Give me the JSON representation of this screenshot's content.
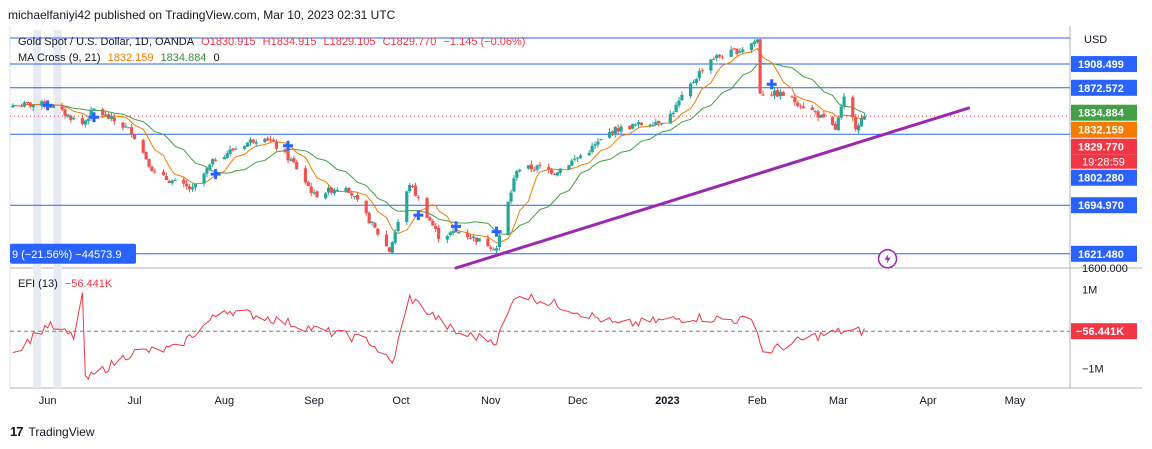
{
  "header": {
    "published_by": "michaelfaniyi42 published on TradingView.com, Mar 10, 2023 02:31 UTC"
  },
  "legend": {
    "symbol": "Gold Spot / U.S. Dollar, 1D, OANDA",
    "open": "O1830.915",
    "high": "H1834.915",
    "low": "L1829.105",
    "close": "C1829.770",
    "change": "−1.145 (−0.06%)",
    "ma_label": "MA Cross (9, 21)",
    "ma_fast": "1832.159",
    "ma_slow": "1834.884",
    "ma_extra": "0",
    "efi_label": "EFI (13)",
    "efi_value": "−56.441K"
  },
  "footer": {
    "brand": "TradingView"
  },
  "colors": {
    "up": "#26a69a",
    "down": "#ef5350",
    "ma_fast": "#f57c00",
    "ma_slow": "#43a047",
    "hline": "#2962ff",
    "trendline": "#9c27b0",
    "efi": "#f23645",
    "cross_marker": "#2962ff"
  },
  "chart_data": {
    "type": "candlestick",
    "symbol": "XAUUSD",
    "timeframe": "1D",
    "currency": "USD",
    "ylim": [
      1600,
      1960
    ],
    "y_ticks": [
      "1600.000"
    ],
    "x_tick_labels": [
      "Jun",
      "Jul",
      "Aug",
      "Sep",
      "Oct",
      "Nov",
      "Dec",
      "2023",
      "Feb",
      "Mar",
      "Apr",
      "May"
    ],
    "x_tick_dates": [
      "2022-06-01",
      "2022-07-01",
      "2022-08-01",
      "2022-09-01",
      "2022-10-01",
      "2022-11-01",
      "2022-12-01",
      "2023-01-01",
      "2023-02-01",
      "2023-03-01",
      "2023-04-01",
      "2023-05-01"
    ],
    "date_range": [
      "2022-05-20",
      "2023-03-10"
    ],
    "close_path": [
      [
        "2022-05-20",
        1846
      ],
      [
        "2022-06-01",
        1848
      ],
      [
        "2022-06-13",
        1818
      ],
      [
        "2022-06-17",
        1840
      ],
      [
        "2022-06-30",
        1807
      ],
      [
        "2022-07-08",
        1742
      ],
      [
        "2022-07-21",
        1718
      ],
      [
        "2022-07-29",
        1766
      ],
      [
        "2022-08-10",
        1792
      ],
      [
        "2022-08-15",
        1800
      ],
      [
        "2022-08-25",
        1758
      ],
      [
        "2022-09-01",
        1710
      ],
      [
        "2022-09-12",
        1725
      ],
      [
        "2022-09-27",
        1626
      ],
      [
        "2022-10-04",
        1728
      ],
      [
        "2022-10-14",
        1648
      ],
      [
        "2022-10-21",
        1655
      ],
      [
        "2022-11-03",
        1630
      ],
      [
        "2022-11-10",
        1750
      ],
      [
        "2022-11-18",
        1752
      ],
      [
        "2022-11-23",
        1745
      ],
      [
        "2022-12-05",
        1778
      ],
      [
        "2022-12-13",
        1808
      ],
      [
        "2022-12-20",
        1815
      ],
      [
        "2023-01-01",
        1825
      ],
      [
        "2023-01-15",
        1915
      ],
      [
        "2023-01-26",
        1930
      ],
      [
        "2023-02-01",
        1945
      ],
      [
        "2023-02-02",
        1866
      ],
      [
        "2023-02-10",
        1862
      ],
      [
        "2023-02-21",
        1835
      ],
      [
        "2023-02-28",
        1810
      ],
      [
        "2023-03-03",
        1855
      ],
      [
        "2023-03-07",
        1815
      ],
      [
        "2023-03-10",
        1830
      ]
    ],
    "ma_fast_value": 1832.159,
    "ma_slow_value": 1834.884,
    "last_close": 1829.77,
    "countdown": "19:28:59",
    "horizontal_levels": [
      1908.499,
      1872.572,
      1802.28,
      1694.97,
      1621.48
    ],
    "price_labels": [
      {
        "text": "USD",
        "value": null
      },
      {
        "text": "1908.499",
        "value": 1908.499,
        "color": "#2962ff"
      },
      {
        "text": "1872.572",
        "value": 1872.572,
        "color": "#2962ff"
      },
      {
        "text": "1834.884",
        "value": 1834.884,
        "color": "#43a047"
      },
      {
        "text": "1832.159",
        "value": 1832.159,
        "color": "#f57c00"
      },
      {
        "text": "1829.770",
        "value": 1829.77,
        "color": "#f23645"
      },
      {
        "text": "1802.280",
        "value": 1802.28,
        "color": "#2962ff"
      },
      {
        "text": "1694.970",
        "value": 1694.97,
        "color": "#2962ff"
      },
      {
        "text": "1621.480",
        "value": 1621.48,
        "color": "#2962ff"
      }
    ],
    "trendline": {
      "from": [
        "2022-10-20",
        1600
      ],
      "to": [
        "2023-04-15",
        1842
      ]
    },
    "measure_label": "9 (−21.56%) −44573.9",
    "cross_markers": [
      [
        "2022-06-01",
        1846
      ],
      [
        "2022-06-17",
        1828
      ],
      [
        "2022-07-29",
        1742
      ],
      [
        "2022-08-23",
        1785
      ],
      [
        "2022-10-07",
        1680
      ],
      [
        "2022-10-20",
        1663
      ],
      [
        "2022-11-03",
        1655
      ],
      [
        "2023-02-06",
        1878
      ]
    ],
    "efi": {
      "name": "EFI (13)",
      "ylim": [
        -1.5,
        1.5
      ],
      "y_tick_labels": [
        "1M",
        "−1M"
      ],
      "y_tick_values": [
        1,
        -1
      ],
      "last_value_label": "−56.441K",
      "path": [
        [
          "2022-05-20",
          -0.6
        ],
        [
          "2022-06-01",
          0.1
        ],
        [
          "2022-06-10",
          -0.2
        ],
        [
          "2022-06-13",
          0.9
        ],
        [
          "2022-06-14",
          -1.3
        ],
        [
          "2022-06-30",
          -0.6
        ],
        [
          "2022-07-15",
          -0.5
        ],
        [
          "2022-08-01",
          0.5
        ],
        [
          "2022-08-15",
          0.3
        ],
        [
          "2022-09-01",
          0.0
        ],
        [
          "2022-09-20",
          -0.3
        ],
        [
          "2022-09-28",
          -0.9
        ],
        [
          "2022-10-04",
          0.8
        ],
        [
          "2022-10-20",
          -0.1
        ],
        [
          "2022-11-03",
          -0.3
        ],
        [
          "2022-11-10",
          0.9
        ],
        [
          "2022-11-25",
          0.6
        ],
        [
          "2022-12-15",
          0.1
        ],
        [
          "2023-01-10",
          0.3
        ],
        [
          "2023-01-31",
          0.2
        ],
        [
          "2023-02-03",
          -0.6
        ],
        [
          "2023-02-20",
          -0.2
        ],
        [
          "2023-03-03",
          -0.05
        ],
        [
          "2023-03-10",
          -0.06
        ]
      ]
    }
  }
}
